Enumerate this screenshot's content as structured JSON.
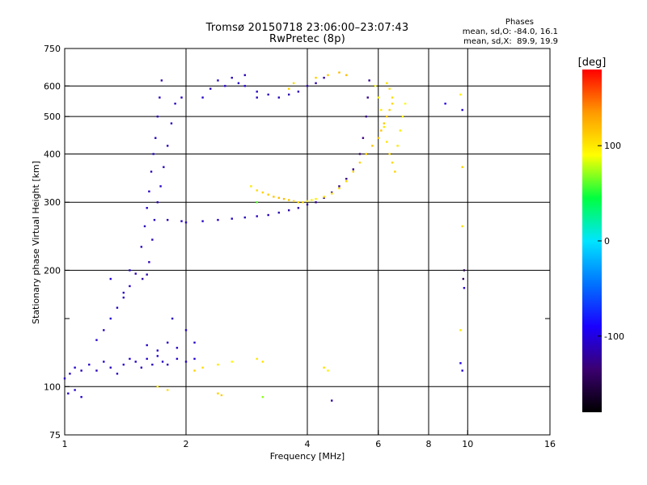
{
  "header": {
    "title": "Tromsø 20150718 23:06:00–23:07:43",
    "subtitle": "RwPretec (8p)"
  },
  "stats": {
    "heading": "Phases",
    "line_o": "mean, sd,O: -84.0, 16.1",
    "line_x": "mean, sd,X:  89.9, 19.9"
  },
  "colorbar": {
    "label": "[deg]",
    "min": -180,
    "max": 180,
    "ticks": [
      {
        "value": 100,
        "label": "100"
      },
      {
        "value": 0,
        "label": "0"
      },
      {
        "value": -100,
        "label": "-100"
      }
    ],
    "stops": [
      "#000000",
      "#3b0070",
      "#1a00ff",
      "#0073ff",
      "#00e5ff",
      "#00ff40",
      "#ffff00",
      "#ff9900",
      "#ff0000"
    ]
  },
  "chart_data": {
    "type": "scatter",
    "xlabel": "Frequency [MHz]",
    "ylabel": "Stationary phase Virtual Height [km]",
    "x_scale": "log",
    "y_scale": "log",
    "xlim": [
      1,
      16
    ],
    "ylim": [
      75,
      750
    ],
    "x_ticks": [
      {
        "value": 1,
        "label": "1"
      },
      {
        "value": 2,
        "label": "2"
      },
      {
        "value": 4,
        "label": "4"
      },
      {
        "value": 6,
        "label": "6"
      },
      {
        "value": 8,
        "label": "8"
      },
      {
        "value": 10,
        "label": "10"
      },
      {
        "value": 16,
        "label": "16"
      }
    ],
    "y_ticks": [
      {
        "value": 75,
        "label": "75"
      },
      {
        "value": 100,
        "label": "100"
      },
      {
        "value": 200,
        "label": "200"
      },
      {
        "value": 300,
        "label": "300"
      },
      {
        "value": 400,
        "label": "400"
      },
      {
        "value": 500,
        "label": "500"
      },
      {
        "value": 600,
        "label": "600"
      },
      {
        "value": 750,
        "label": "750"
      }
    ],
    "grid_x": [
      2,
      4,
      6,
      8,
      10
    ],
    "grid_y": [
      100,
      200,
      300,
      400,
      500,
      600
    ],
    "minor_y": [
      150
    ],
    "series": [
      {
        "points": [
          [
            1.0,
            105,
            -110
          ],
          [
            1.03,
            108,
            -110
          ],
          [
            1.06,
            112,
            -108
          ],
          [
            1.1,
            110,
            -112
          ],
          [
            1.15,
            114,
            -106
          ],
          [
            1.2,
            110,
            -112
          ],
          [
            1.25,
            116,
            -104
          ],
          [
            1.3,
            112,
            -110
          ],
          [
            1.35,
            108,
            -112
          ],
          [
            1.4,
            114,
            -106
          ],
          [
            1.45,
            118,
            -104
          ],
          [
            1.5,
            116,
            -108
          ],
          [
            1.55,
            112,
            -110
          ],
          [
            1.6,
            118,
            -106
          ],
          [
            1.65,
            114,
            -108
          ],
          [
            1.7,
            120,
            -104
          ],
          [
            1.75,
            116,
            -108
          ],
          [
            1.8,
            114,
            -110
          ],
          [
            1.9,
            118,
            -106
          ],
          [
            2.0,
            116,
            -108
          ],
          [
            2.1,
            118,
            -104
          ],
          [
            1.02,
            96,
            -104
          ],
          [
            1.06,
            98,
            -108
          ],
          [
            1.1,
            94,
            -104
          ],
          [
            1.2,
            132,
            -106
          ],
          [
            1.25,
            140,
            -110
          ],
          [
            1.3,
            150,
            -104
          ],
          [
            1.35,
            160,
            -112
          ],
          [
            1.4,
            170,
            -108
          ],
          [
            1.45,
            182,
            -106
          ],
          [
            1.5,
            196,
            -112
          ],
          [
            1.55,
            230,
            -108
          ],
          [
            1.58,
            260,
            -112
          ],
          [
            1.6,
            290,
            -106
          ],
          [
            1.62,
            320,
            -110
          ],
          [
            1.64,
            360,
            -112
          ],
          [
            1.66,
            400,
            -108
          ],
          [
            1.68,
            440,
            -110
          ],
          [
            1.7,
            500,
            -112
          ],
          [
            1.72,
            560,
            -110
          ],
          [
            1.74,
            620,
            -114
          ],
          [
            1.56,
            190,
            -118
          ],
          [
            1.6,
            195,
            -116
          ],
          [
            1.62,
            210,
            -112
          ],
          [
            1.65,
            240,
            -114
          ],
          [
            1.67,
            270,
            -110
          ],
          [
            1.7,
            300,
            -112
          ],
          [
            1.73,
            330,
            -108
          ],
          [
            1.76,
            370,
            -110
          ],
          [
            1.8,
            420,
            -112
          ],
          [
            1.84,
            480,
            -108
          ],
          [
            1.88,
            540,
            -110
          ],
          [
            1.95,
            560,
            -108
          ],
          [
            1.8,
            270,
            -112
          ],
          [
            1.95,
            268,
            -110
          ],
          [
            2.0,
            266,
            -110
          ],
          [
            2.2,
            268,
            -108
          ],
          [
            2.4,
            270,
            -110
          ],
          [
            2.6,
            272,
            -108
          ],
          [
            2.8,
            274,
            -112
          ],
          [
            3.0,
            276,
            -110
          ],
          [
            3.2,
            278,
            -112
          ],
          [
            3.4,
            282,
            -114
          ],
          [
            3.6,
            286,
            -116
          ],
          [
            3.8,
            290,
            -118
          ],
          [
            4.0,
            296,
            -122
          ],
          [
            4.2,
            300,
            -124
          ],
          [
            4.4,
            308,
            -126
          ],
          [
            4.6,
            318,
            -128
          ],
          [
            4.8,
            330,
            -130
          ],
          [
            5.0,
            345,
            -132
          ],
          [
            5.2,
            365,
            -130
          ],
          [
            5.4,
            400,
            -132
          ],
          [
            5.5,
            440,
            -130
          ],
          [
            5.6,
            500,
            -128
          ],
          [
            5.65,
            560,
            -126
          ],
          [
            5.7,
            620,
            -124
          ],
          [
            2.2,
            560,
            -106
          ],
          [
            2.3,
            590,
            -108
          ],
          [
            2.4,
            620,
            -110
          ],
          [
            2.5,
            600,
            -106
          ],
          [
            2.6,
            630,
            -112
          ],
          [
            2.7,
            610,
            -108
          ],
          [
            2.8,
            640,
            -114
          ],
          [
            3.0,
            580,
            -108
          ],
          [
            3.2,
            570,
            -110
          ],
          [
            3.4,
            560,
            -112
          ],
          [
            3.6,
            570,
            -114
          ],
          [
            3.8,
            580,
            -112
          ],
          [
            4.0,
            600,
            -110
          ],
          [
            4.2,
            610,
            -116
          ],
          [
            4.4,
            630,
            -120
          ],
          [
            1.3,
            190,
            -104
          ],
          [
            1.4,
            175,
            -106
          ],
          [
            1.45,
            200,
            -104
          ],
          [
            1.85,
            150,
            -106
          ],
          [
            2.0,
            140,
            -108
          ],
          [
            2.1,
            130,
            -106
          ],
          [
            1.6,
            128,
            -108
          ],
          [
            1.7,
            124,
            -104
          ],
          [
            1.8,
            130,
            -106
          ],
          [
            1.9,
            126,
            -108
          ],
          [
            9.6,
            115,
            -96
          ],
          [
            9.7,
            110,
            -100
          ],
          [
            9.8,
            180,
            -104
          ],
          [
            9.75,
            190,
            -140
          ],
          [
            9.8,
            200,
            -150
          ],
          [
            9.7,
            520,
            -104
          ],
          [
            8.8,
            540,
            -98
          ],
          [
            4.6,
            92,
            -120
          ],
          [
            2.8,
            600,
            -104
          ],
          [
            3.0,
            560,
            -112
          ]
        ]
      },
      {
        "points": [
          [
            2.9,
            330,
            100
          ],
          [
            3.0,
            322,
            105
          ],
          [
            3.1,
            318,
            110
          ],
          [
            3.2,
            314,
            112
          ],
          [
            3.3,
            310,
            115
          ],
          [
            3.4,
            308,
            118
          ],
          [
            3.5,
            306,
            120
          ],
          [
            3.6,
            304,
            115
          ],
          [
            3.7,
            302,
            112
          ],
          [
            3.8,
            300,
            108
          ],
          [
            3.9,
            300,
            104
          ],
          [
            4.0,
            302,
            100
          ],
          [
            4.1,
            304,
            96
          ],
          [
            4.2,
            306,
            98
          ],
          [
            4.4,
            310,
            102
          ],
          [
            4.6,
            316,
            104
          ],
          [
            4.8,
            326,
            106
          ],
          [
            5.0,
            340,
            108
          ],
          [
            5.2,
            360,
            110
          ],
          [
            5.4,
            380,
            112
          ],
          [
            5.6,
            400,
            114
          ],
          [
            5.8,
            420,
            116
          ],
          [
            6.0,
            440,
            118
          ],
          [
            6.1,
            460,
            116
          ],
          [
            6.2,
            480,
            114
          ],
          [
            6.3,
            500,
            112
          ],
          [
            6.4,
            520,
            110
          ],
          [
            6.5,
            540,
            108
          ],
          [
            6.5,
            560,
            106
          ],
          [
            6.4,
            590,
            104
          ],
          [
            6.3,
            610,
            102
          ],
          [
            5.9,
            600,
            90
          ],
          [
            6.0,
            560,
            95
          ],
          [
            6.1,
            520,
            98
          ],
          [
            6.2,
            470,
            100
          ],
          [
            6.3,
            430,
            102
          ],
          [
            6.4,
            400,
            104
          ],
          [
            6.5,
            380,
            108
          ],
          [
            6.6,
            360,
            110
          ],
          [
            6.7,
            420,
            100
          ],
          [
            6.8,
            460,
            98
          ],
          [
            6.9,
            500,
            96
          ],
          [
            7.0,
            540,
            92
          ],
          [
            3.6,
            590,
            110
          ],
          [
            3.7,
            610,
            108
          ],
          [
            4.2,
            630,
            112
          ],
          [
            4.5,
            640,
            115
          ],
          [
            4.8,
            650,
            120
          ],
          [
            5.0,
            640,
            118
          ],
          [
            2.1,
            110,
            110
          ],
          [
            2.2,
            112,
            105
          ],
          [
            2.4,
            114,
            100
          ],
          [
            2.6,
            116,
            95
          ],
          [
            3.0,
            118,
            100
          ],
          [
            3.1,
            116,
            102
          ],
          [
            4.4,
            112,
            104
          ],
          [
            4.5,
            110,
            96
          ],
          [
            1.7,
            100,
            100
          ],
          [
            1.8,
            98,
            104
          ],
          [
            2.4,
            96,
            110
          ],
          [
            2.45,
            95,
            112
          ],
          [
            9.6,
            140,
            100
          ],
          [
            9.7,
            370,
            110
          ],
          [
            9.7,
            260,
            104
          ],
          [
            3.1,
            94,
            70
          ],
          [
            3.0,
            300,
            60
          ],
          [
            9.6,
            570,
            96
          ]
        ]
      }
    ]
  }
}
